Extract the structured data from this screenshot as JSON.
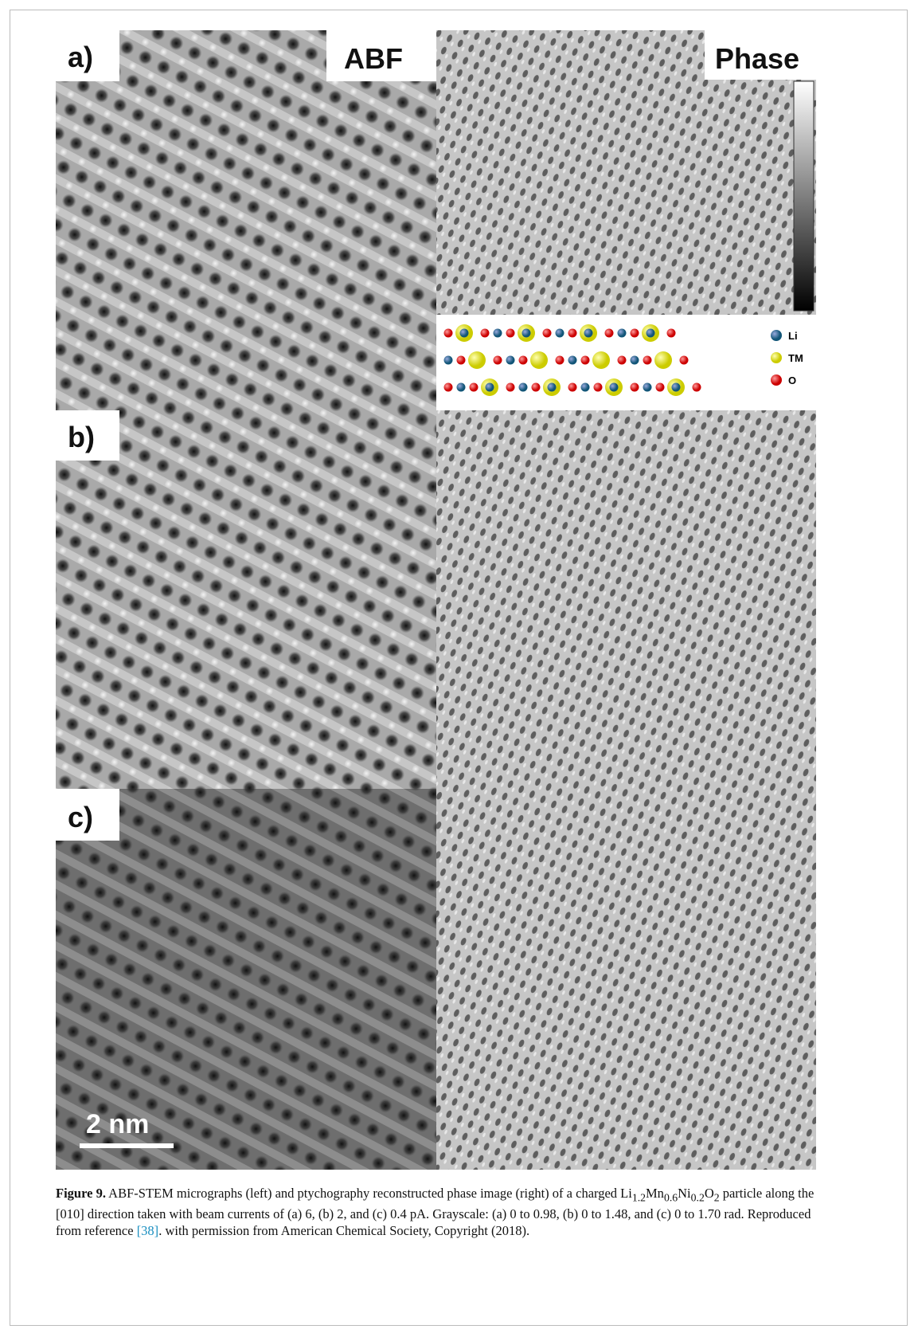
{
  "panels": {
    "a": {
      "label": "a)",
      "left_title": "ABF",
      "right_title": "Phase"
    },
    "b": {
      "label": "b)"
    },
    "c": {
      "label": "c)"
    }
  },
  "scale_bar": "2 nm",
  "legend": {
    "li": "Li",
    "tm": "TM",
    "o": "O"
  },
  "caption": {
    "label": "Figure 9.",
    "t1": "ABF-STEM micrographs (left) and ptychography reconstructed phase image (right) of a charged Li",
    "s1": "1.2",
    "t2": "Mn",
    "s2": "0.6",
    "t3": "Ni",
    "s3": "0.2",
    "t4": "O",
    "s4": "2",
    "t5": " particle along the [010] direction taken with beam currents of (a) 6, (b) 2, and (c) 0.4 pA. Grayscale: (a) 0 to 0.98, (b) 0 to 1.48, and (c) 0 to 1.70 rad. Reproduced from reference ",
    "ref": "[38]",
    "t6": ". with permission from American Chemical Society, Copyright (2018)."
  }
}
